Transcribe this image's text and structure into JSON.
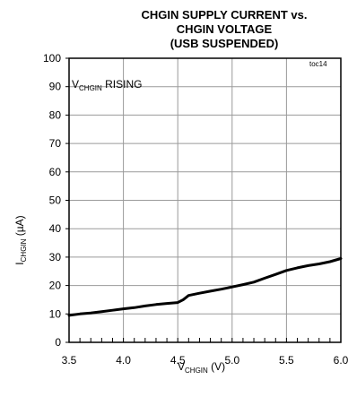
{
  "chart_data": {
    "type": "line",
    "title_lines": [
      "CHGIN SUPPLY CURRENT vs.",
      "CHGIN VOLTAGE",
      "(USB SUSPENDED)"
    ],
    "note": "toc14",
    "annotation": {
      "main": "V",
      "sub": "CHGIN",
      "rest": " RISING"
    },
    "xlabel": {
      "main": "V",
      "sub": "CHGIN",
      "rest": " (V)"
    },
    "ylabel": {
      "main": "I",
      "sub": "CHGIN",
      "rest": " (µA)"
    },
    "xlim": [
      3.5,
      6.0
    ],
    "ylim": [
      0,
      100
    ],
    "xticks": [
      "3.5",
      "4.0",
      "4.5",
      "5.0",
      "5.5",
      "6.0"
    ],
    "yticks": [
      "0",
      "10",
      "20",
      "30",
      "40",
      "50",
      "60",
      "70",
      "80",
      "90",
      "100"
    ],
    "grid": true,
    "series": [
      {
        "x": [
          3.5,
          3.6,
          3.7,
          3.8,
          3.9,
          4.0,
          4.1,
          4.2,
          4.3,
          4.4,
          4.5,
          4.55,
          4.6,
          4.7,
          4.8,
          4.9,
          5.0,
          5.1,
          5.2,
          5.3,
          5.4,
          5.5,
          5.6,
          5.7,
          5.8,
          5.9,
          6.0
        ],
        "y": [
          9.5,
          10,
          10.3,
          10.8,
          11.3,
          11.8,
          12.2,
          12.8,
          13.3,
          13.7,
          14,
          15,
          16.5,
          17.3,
          18,
          18.7,
          19.5,
          20.3,
          21.2,
          22.6,
          23.9,
          25.3,
          26.2,
          27,
          27.6,
          28.4,
          29.5
        ]
      }
    ]
  }
}
